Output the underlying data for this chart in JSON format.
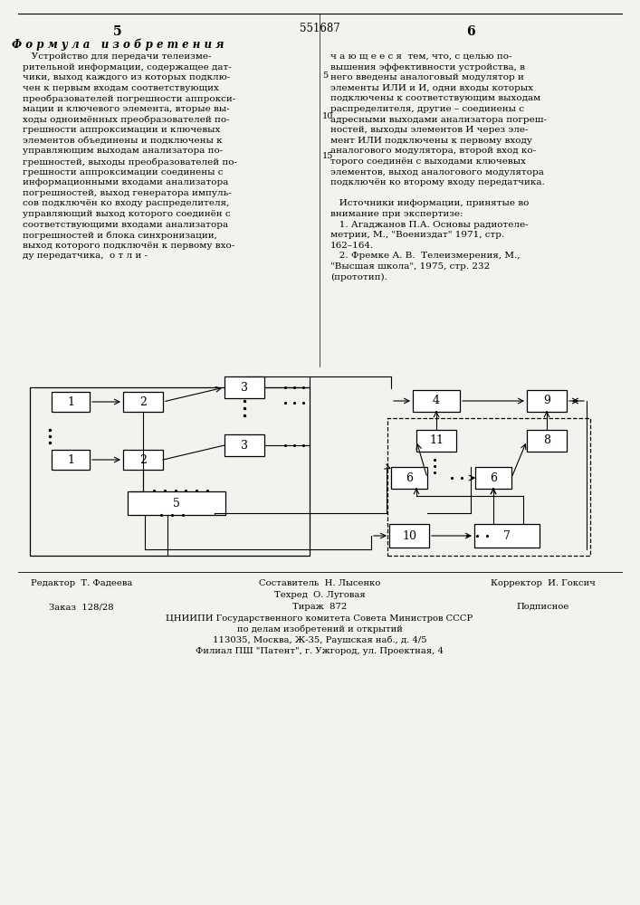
{
  "page_number_left": "5",
  "page_number_right": "6",
  "patent_number": "551687",
  "section_title": "Ф о р м у л а   и з о б р е т е н и я",
  "footer_editor": "Редактор  Т. Фадеева",
  "footer_compiler": "Составитель  Н. Лысенко",
  "footer_corrector": "Корректор  И. Гоксич",
  "footer_tech": "Техред  О. Луговая",
  "footer_order": "Заказ  128/28",
  "footer_circulation": "Тираж  872",
  "footer_subscription": "Подписное",
  "footer_org": "ЦНИИПИ Государственного комитета Совета Министров СССР",
  "footer_org2": "по делам изобретений и открытий",
  "footer_address": "113035, Москва, Ж-35, Раушская наб., д. 4/5",
  "footer_branch": "Филиал ПШ \"Патент\", г. Ужгород, ул. Проектная, 4",
  "bg_color": "#f2f2ee",
  "left_col_lines": [
    "   Устройство для передачи телеизме-",
    "рительной информации, содержащее дат-",
    "чики, выход каждого из которых подклю-",
    "чен к первым входам соответствующих",
    "преобразователей погрешности аппрокси-",
    "мации и ключевого элемента, вторые вы-",
    "ходы одноимённых преобразователей по-",
    "грешности аппроксимации и ключевых",
    "элементов объединены и подключены к",
    "управляющим выходам анализатора по-",
    "грешностей, выходы преобразователей по-",
    "грешности аппроксимации соединены с",
    "информационными входами анализатора",
    "погрешностей, выход генератора импуль-",
    "сов подключён ко входу распределителя,",
    "управляющий выход которого соединён с",
    "соответствующими входами анализатора",
    "погрешностей и блока синхронизации,",
    "выход которого подключён к первому вхо-",
    "ду передатчика,  о т л и -"
  ],
  "right_col_lines": [
    "ч а ю щ е е с я  тем, что, с целью по-",
    "вышения эффективности устройства, в",
    "него введены аналоговый модулятор и",
    "элементы ИЛИ и И, одни входы которых",
    "подключены к соответствующим выходам",
    "распределителя, другие – соединены с",
    "адресными выходами анализатора погреш-",
    "ностей, выходы элементов И через эле-",
    "мент ИЛИ подключены к первому входу",
    "аналогового модулятора, второй вход ко-",
    "торого соединён с выходами ключевых",
    "элементов, выход аналогового модулятора",
    "подключён ко второму входу передатчика.",
    "",
    "   Источники информации, принятые во",
    "внимание при экспертизе:",
    "   1. Агаджанов П.А. Основы радиотеле-",
    "метрии, М., \"Воениздат\" 1971, стр.",
    "162–164.",
    "   2. Фремке А. В.  Телеизмерения, М.,",
    "\"Высшая школа\", 1975, стр. 232",
    "(прототип)."
  ]
}
